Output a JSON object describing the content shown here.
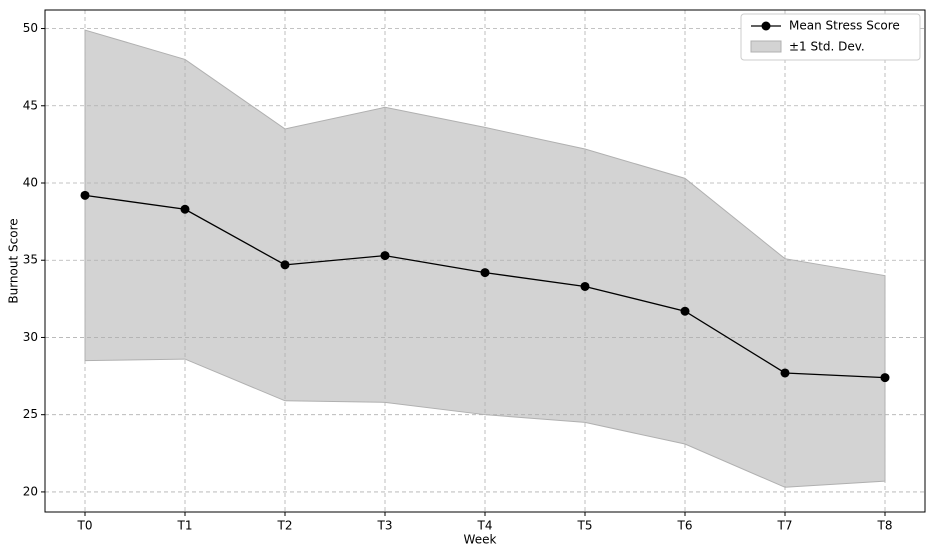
{
  "chart_data": {
    "type": "line",
    "x_label": "Week",
    "y_label": "Burnout Score",
    "categories": [
      "T0",
      "T1",
      "T2",
      "T3",
      "T4",
      "T5",
      "T6",
      "T7",
      "T8"
    ],
    "series": [
      {
        "name": "Mean Stress Score",
        "color": "#000000",
        "values": [
          39.2,
          38.3,
          34.7,
          35.3,
          34.2,
          33.3,
          31.7,
          27.7,
          27.4
        ]
      },
      {
        "name": "±1 Std. Dev.",
        "color": "#d3d3d3",
        "upper": [
          49.9,
          48.0,
          43.5,
          44.9,
          43.6,
          42.2,
          40.3,
          35.1,
          34.0
        ],
        "lower": [
          28.5,
          28.6,
          25.9,
          25.8,
          25.0,
          24.5,
          23.1,
          20.3,
          20.7
        ]
      }
    ],
    "ylim": [
      18.7,
      51.2
    ],
    "yticks": [
      20,
      25,
      30,
      35,
      40,
      45,
      50
    ],
    "grid": true,
    "legend": "upper right"
  }
}
